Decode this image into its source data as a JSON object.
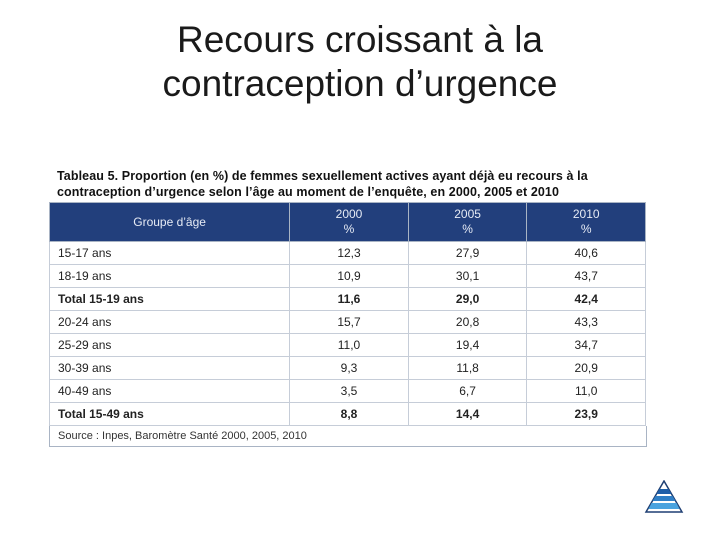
{
  "slide": {
    "title_line1": "Recours croissant à la",
    "title_line2": "contraception d’urgence"
  },
  "table": {
    "caption_line1": "Tableau 5. Proportion (en %) de femmes sexuellement actives ayant déjà eu recours à la",
    "caption_line2": "contraception d’urgence selon l’âge au moment de l’enquête, en 2000, 2005 et 2010",
    "headers": [
      {
        "top": "Groupe d’âge",
        "bottom": ""
      },
      {
        "top": "2000",
        "bottom": "%"
      },
      {
        "top": "2005",
        "bottom": "%"
      },
      {
        "top": "2010",
        "bottom": "%"
      }
    ],
    "rows": [
      {
        "label": "15-17 ans",
        "v2000": "12,3",
        "v2005": "27,9",
        "v2010": "40,6",
        "total": false
      },
      {
        "label": "18-19 ans",
        "v2000": "10,9",
        "v2005": "30,1",
        "v2010": "43,7",
        "total": false
      },
      {
        "label": "Total 15-19 ans",
        "v2000": "11,6",
        "v2005": "29,0",
        "v2010": "42,4",
        "total": true
      },
      {
        "label": "20-24 ans",
        "v2000": "15,7",
        "v2005": "20,8",
        "v2010": "43,3",
        "total": false
      },
      {
        "label": "25-29 ans",
        "v2000": "11,0",
        "v2005": "19,4",
        "v2010": "34,7",
        "total": false
      },
      {
        "label": "30-39 ans",
        "v2000": "9,3",
        "v2005": "11,8",
        "v2010": "20,9",
        "total": false
      },
      {
        "label": "40-49 ans",
        "v2000": "3,5",
        "v2005": "6,7",
        "v2010": "11,0",
        "total": false
      },
      {
        "label": "Total 15-49 ans",
        "v2000": "8,8",
        "v2005": "14,4",
        "v2010": "23,9",
        "total": true
      }
    ],
    "source": "Source : Inpes, Baromètre Santé 2000, 2005, 2010"
  },
  "colors": {
    "header_bg": "#223f7c",
    "logo_top": "#1f5fa8",
    "logo_bottom": "#4aa3df"
  },
  "icons": {
    "corner_logo": "pyramid-logo-icon"
  }
}
